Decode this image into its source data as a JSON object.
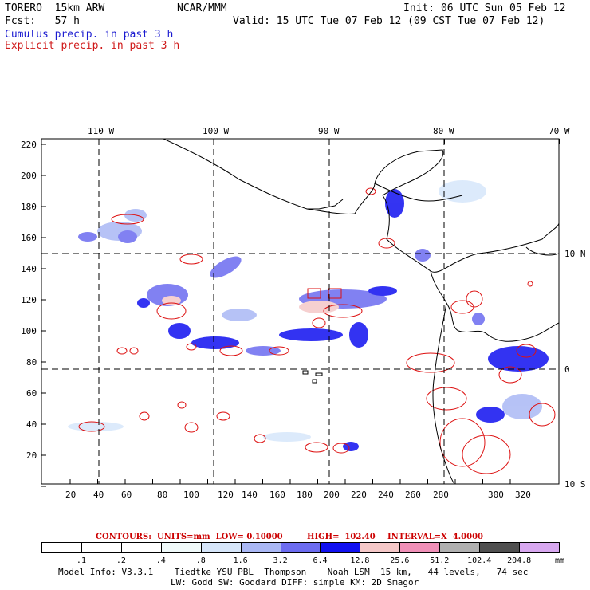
{
  "header": {
    "model": "TORERO  15km ARW",
    "center": "NCAR/MMM",
    "init": "Init: 06 UTC Sun 05 Feb 12",
    "fcst": "Fcst:   57 h",
    "valid": "Valid: 15 UTC Tue 07 Feb 12 (09 CST Tue 07 Feb 12)",
    "field1": "Cumulus precip. in past 3 h",
    "field2": "Explicit precip. in past 3 h"
  },
  "map": {
    "lon_labels": [
      "110 W",
      "100 W",
      "90 W",
      "80 W",
      "70 W"
    ],
    "lat_labels": [
      "10 N",
      "0",
      "10 S"
    ],
    "y_ticks": [
      "220",
      "200",
      "180",
      "160",
      "140",
      "120",
      "100",
      "80",
      "60",
      "40",
      "20"
    ],
    "x_ticks": [
      "20",
      "40",
      "60",
      "80",
      "100",
      "120",
      "140",
      "160",
      "180",
      "200",
      "220",
      "240",
      "260",
      "280",
      "300",
      "320"
    ]
  },
  "contours": {
    "label": "CONTOURS:  UNITS=mm  LOW= 0.10000",
    "high": "HIGH=  102.40",
    "interval": "INTERVAL=X  4.0000"
  },
  "colorbar": {
    "labels": [
      ".1",
      ".2",
      ".4",
      ".8",
      "1.6",
      "3.2",
      "6.4",
      "12.8",
      "25.6",
      "51.2",
      "102.4",
      "204.8"
    ],
    "unit": "mm",
    "colors": [
      "#ffffff",
      "#ffffff",
      "#ffffff",
      "#f0fafa",
      "#d6e6fa",
      "#aab8f5",
      "#6c6cf0",
      "#1010f0",
      "#f5c8c8",
      "#f090b8",
      "#b0b0b0",
      "#505050",
      "#d8a8f0"
    ]
  },
  "footer": {
    "line1": "Model Info: V3.3.1    Tiedtke YSU PBL  Thompson    Noah LSM  15 km,   44 levels,   74 sec",
    "line2": "LW: Godd SW: Goddard DIFF: simple KM: 2D Smagor"
  }
}
